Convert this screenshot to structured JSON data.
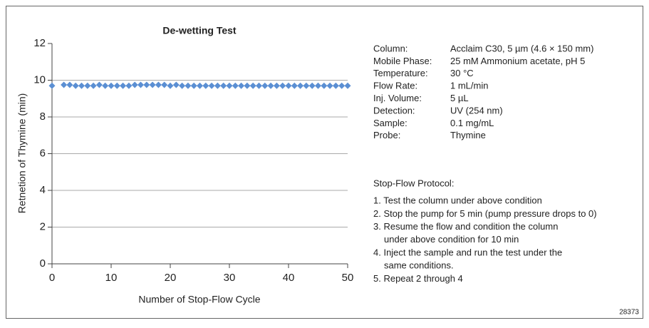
{
  "chart_data": {
    "type": "scatter",
    "title": "De-wetting Test",
    "xlabel": "Number of Stop-Flow Cycle",
    "ylabel": "Retnetion of Thymine (min)",
    "series": [
      {
        "name": "Thymine",
        "color": "#5b8fd3",
        "x": [
          0,
          2,
          3,
          4,
          5,
          6,
          7,
          8,
          9,
          10,
          11,
          12,
          13,
          14,
          15,
          16,
          17,
          18,
          19,
          20,
          21,
          22,
          23,
          24,
          25,
          26,
          27,
          28,
          29,
          30,
          31,
          32,
          33,
          34,
          35,
          36,
          37,
          38,
          39,
          40,
          41,
          42,
          43,
          44,
          45,
          46,
          47,
          48,
          49,
          50
        ],
        "values": [
          9.7,
          9.75,
          9.75,
          9.7,
          9.7,
          9.7,
          9.7,
          9.75,
          9.7,
          9.7,
          9.7,
          9.7,
          9.7,
          9.75,
          9.75,
          9.75,
          9.75,
          9.75,
          9.75,
          9.7,
          9.75,
          9.7,
          9.7,
          9.7,
          9.7,
          9.7,
          9.7,
          9.7,
          9.7,
          9.7,
          9.7,
          9.7,
          9.7,
          9.7,
          9.7,
          9.7,
          9.7,
          9.7,
          9.7,
          9.7,
          9.7,
          9.7,
          9.7,
          9.7,
          9.7,
          9.7,
          9.7,
          9.7,
          9.7,
          9.7
        ]
      }
    ],
    "xlim": [
      0,
      50
    ],
    "xticks": [
      0,
      10,
      20,
      30,
      40,
      50
    ],
    "ylim": [
      0,
      12
    ],
    "yticks": [
      0,
      2,
      4,
      6,
      8,
      10,
      12
    ],
    "grid": true
  },
  "conditions": [
    {
      "label": "Column:",
      "value": "Acclaim C30, 5 µm (4.6 × 150 mm)"
    },
    {
      "label": "Mobile Phase:",
      "value": "25 mM Ammonium acetate, pH 5"
    },
    {
      "label": "Temperature:",
      "value": "30 °C"
    },
    {
      "label": "Flow Rate:",
      "value": "1 mL/min"
    },
    {
      "label": "Inj. Volume:",
      "value": "5 µL"
    },
    {
      "label": "Detection:",
      "value": "UV (254 nm)"
    },
    {
      "label": "Sample:",
      "value": "0.1 mg/mL"
    },
    {
      "label": "Probe:",
      "value": "Thymine"
    }
  ],
  "protocol": {
    "title": "Stop-Flow Protocol:",
    "steps": [
      [
        "1. Test the column under above condition"
      ],
      [
        "2. Stop the pump for 5 min (pump pressure drops to 0)"
      ],
      [
        "3. Resume the flow and condition the column",
        "under above condition for 10 min"
      ],
      [
        "4. Inject the sample and run the test under the",
        "same conditions."
      ],
      [
        "5. Repeat 2 through 4"
      ]
    ]
  },
  "figure_id": "28373"
}
